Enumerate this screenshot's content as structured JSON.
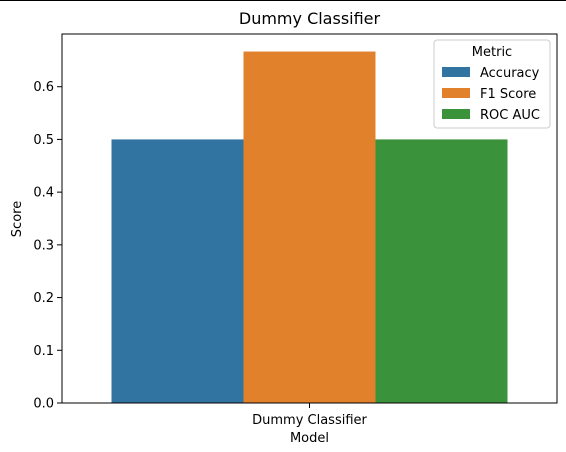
{
  "chart_data": {
    "type": "bar",
    "title": "Dummy Classifier",
    "xlabel": "Model",
    "ylabel": "Score",
    "categories": [
      "Dummy Classifier"
    ],
    "series": [
      {
        "name": "Accuracy",
        "values": [
          0.5
        ],
        "color": "#3274a1"
      },
      {
        "name": "F1 Score",
        "values": [
          0.6667
        ],
        "color": "#e1812c"
      },
      {
        "name": "ROC AUC",
        "values": [
          0.5
        ],
        "color": "#3a923a"
      }
    ],
    "yticks": [
      "0.0",
      "0.1",
      "0.2",
      "0.3",
      "0.4",
      "0.5",
      "0.6"
    ],
    "ylim": [
      0,
      0.7
    ],
    "grid": false,
    "legend": {
      "title": "Metric",
      "placement": "top-right"
    }
  }
}
